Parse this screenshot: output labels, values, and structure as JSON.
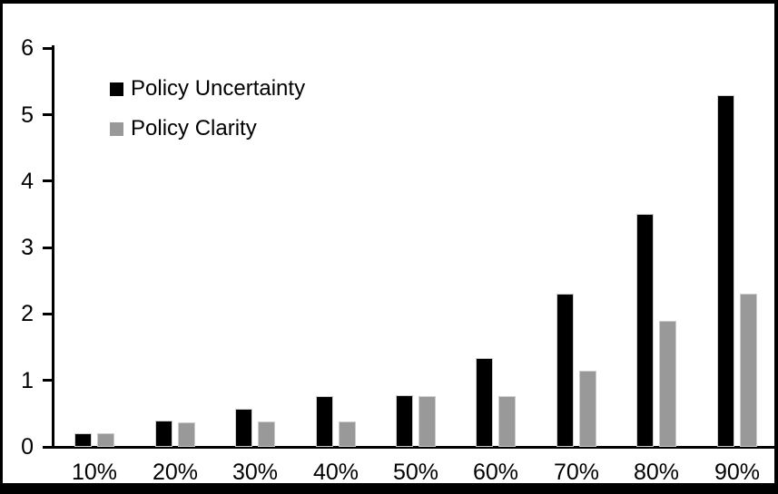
{
  "chart_data": {
    "type": "bar",
    "title": "",
    "xlabel": "",
    "ylabel": "",
    "categories": [
      "10%",
      "20%",
      "30%",
      "40%",
      "50%",
      "60%",
      "70%",
      "80%",
      "90%"
    ],
    "series": [
      {
        "name": "Policy Uncertainty",
        "color": "#000000",
        "values": [
          0.2,
          0.39,
          0.57,
          0.76,
          0.78,
          1.34,
          2.31,
          3.5,
          5.3
        ]
      },
      {
        "name": "Policy Clarity",
        "color": "#999999",
        "values": [
          0.2,
          0.37,
          0.38,
          0.38,
          0.77,
          0.77,
          1.15,
          1.9,
          2.3
        ]
      }
    ],
    "ylim": [
      0,
      6
    ],
    "yticks": [
      0,
      1,
      2,
      3,
      4,
      5,
      6
    ],
    "grid": false,
    "legend_position": "inside-top-left",
    "axis_color": "#000000",
    "plot_background": "#ffffff",
    "frame_color": "#000000"
  }
}
